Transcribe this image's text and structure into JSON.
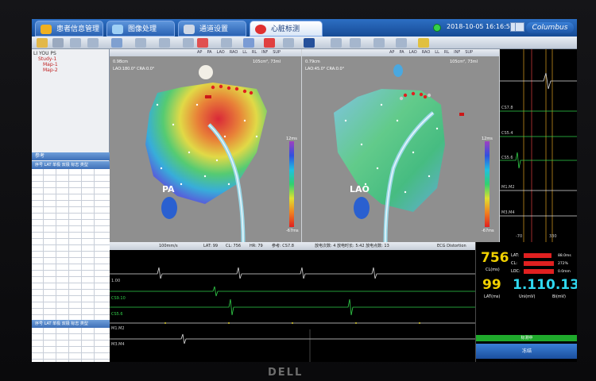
{
  "brand": "DELL",
  "tabs": [
    {
      "label": "患者信息管理"
    },
    {
      "label": "图像处理"
    },
    {
      "label": "通道设置"
    },
    {
      "label": "心脏标测"
    }
  ],
  "header": {
    "datetime": "2018-10-05 16:16:53",
    "logo": "Columbus"
  },
  "tree": {
    "items": [
      "LI YOU PS",
      "Study-1",
      "Map-1",
      "Map-2"
    ]
  },
  "left_grid": {
    "header1": "参考",
    "header2": "序号 LAT 单极 双极 标志 类型",
    "header3": "序号 LAT 单极 双极 标志 类型"
  },
  "view_toolbar": [
    "AP",
    "PA",
    "LAO",
    "RAO",
    "LL",
    "RL",
    "INF",
    "SUP"
  ],
  "view_pa": {
    "info1": "0.9Bcm",
    "info2": "LAO:180.0° CRA:0.0°",
    "info3": "105cm², 73ml",
    "label": "PA",
    "cbar_top": "12ms",
    "cbar_bot": "-67ms"
  },
  "view_lao": {
    "info1": "0.79cm",
    "info2": "LAO:45.0° CRA:0.0°",
    "info3": "105cm², 73ml",
    "label": "LAO",
    "cbar_top": "12ms",
    "cbar_bot": "-67ms"
  },
  "ecg_right_labels": [
    "CS7.8",
    "CS5.4",
    "CS5.6",
    "M1.M2",
    "M3.M4"
  ],
  "ecg_right_axis": [
    "-70",
    "330"
  ],
  "ecg_bar": {
    "speed": "100mm/s",
    "lat": "LAT: 99",
    "cl": "CL: 756",
    "hr": "HR: 79",
    "ref": "参考: CS7.8",
    "counts": "放电次数: 4  放电时长: 5:42  放电点数: 13",
    "distortion": "ECG Distortion"
  },
  "ecg_bottom_labels": [
    "1.00",
    "CS9.10",
    "CS5.6",
    "M1.M2",
    "M3.M4"
  ],
  "stats": {
    "cl_value": "756",
    "cl_unit": "CL(ms)",
    "lat_value": "99",
    "lat_unit": "LAT(ms)",
    "uni_value": "1.11",
    "uni_unit": "Uni(mV)",
    "bi_value": "0.13",
    "bi_unit": "Bi(mV)",
    "bars": [
      {
        "label": "LAT:",
        "value": "88.0ms",
        "fill": 0.88
      },
      {
        "label": "CL:",
        "value": "272%",
        "fill": 0.95
      },
      {
        "label": "LOC:",
        "value": "0.0mm",
        "fill": 0.95
      }
    ],
    "green_label": "标测中",
    "action_label": "冻结"
  },
  "colors": {
    "tab_blue": "#1f5fb4",
    "lat_red": "#e02020",
    "ecg_green": "#32d14a",
    "stat_yellow": "#f0d000",
    "stat_cyan": "#2fd8f0"
  }
}
